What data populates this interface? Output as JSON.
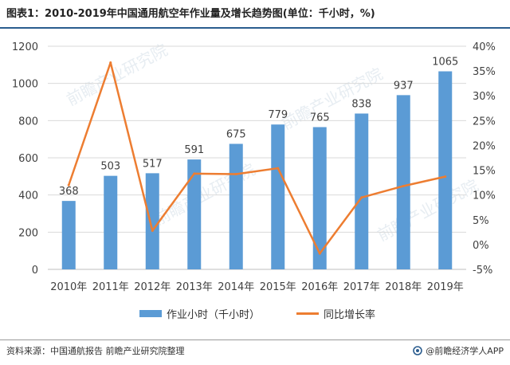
{
  "title": "图表1：2010-2019年中国通用航空年作业量及增长趋势图(单位：千小时，%)",
  "footer": {
    "source": "资料来源：中国通航报告 前瞻产业研究院整理",
    "brand": "@前瞻经济学人APP",
    "brand_icon": "circle-logo-icon"
  },
  "watermark": "前瞻产业研究院",
  "colors": {
    "bar": "#5b9bd5",
    "line": "#ed7d31",
    "grid": "#d9d9d9",
    "rule": "#2b5d8f"
  },
  "chart_data": {
    "type": "bar",
    "categories": [
      "2010年",
      "2011年",
      "2012年",
      "2013年",
      "2014年",
      "2015年",
      "2016年",
      "2017年",
      "2018年",
      "2019年"
    ],
    "series": [
      {
        "name": "作业小时（千小时）",
        "type": "bar",
        "axis": "left",
        "values": [
          368,
          503,
          517,
          591,
          675,
          779,
          765,
          838,
          937,
          1065
        ]
      },
      {
        "name": "同比增长率",
        "type": "line",
        "axis": "right",
        "values": [
          12.0,
          36.7,
          2.8,
          14.3,
          14.2,
          15.4,
          -1.8,
          9.5,
          11.8,
          13.7
        ]
      }
    ],
    "data_labels": [
      "368",
      "503",
      "517",
      "591",
      "675",
      "779",
      "765",
      "838",
      "937",
      "1065"
    ],
    "ylim_left": [
      0,
      1200
    ],
    "yticks_left": [
      "0",
      "200",
      "400",
      "600",
      "800",
      "1000",
      "1200"
    ],
    "ylim_right": [
      -5,
      40
    ],
    "yticks_right": [
      "-5%",
      "0%",
      "5%",
      "10%",
      "15%",
      "20%",
      "25%",
      "30%",
      "35%",
      "40%"
    ],
    "grid": true,
    "legend_position": "bottom"
  }
}
